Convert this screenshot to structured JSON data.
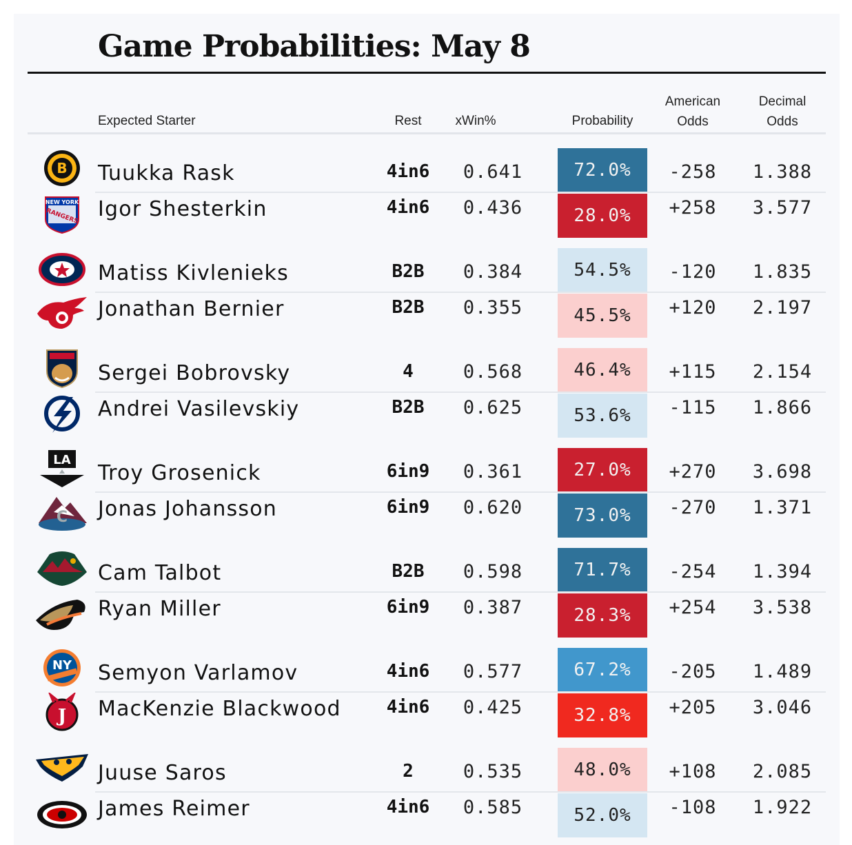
{
  "title": "Game Probabilities: May 8",
  "headers": {
    "starter": "Expected Starter",
    "rest": "Rest",
    "xwin": "xWin%",
    "probability": "Probability",
    "american_1": "American",
    "american_2": "Odds",
    "decimal_1": "Decimal",
    "decimal_2": "Odds"
  },
  "colors": {
    "strong_blue": "#2f7299",
    "mid_blue": "#4197cc",
    "light_blue": "#d4e6f2",
    "strong_red": "#c9202f",
    "bright_red": "#f0291f",
    "light_red": "#fbcfce"
  },
  "rows": [
    {
      "team_icon": "bruins-logo-icon",
      "starter": "Tuukka Rask",
      "rest": "4in6",
      "xwin": "0.641",
      "probability": "72.0%",
      "prob_color": "#2f7299",
      "american": "-258",
      "decimal": "1.388"
    },
    {
      "team_icon": "rangers-logo-icon",
      "starter": "Igor Shesterkin",
      "rest": "4in6",
      "xwin": "0.436",
      "probability": "28.0%",
      "prob_color": "#c9202f",
      "american": "+258",
      "decimal": "3.577"
    },
    {
      "team_icon": "blue-jackets-logo-icon",
      "starter": "Matiss Kivlenieks",
      "rest": "B2B",
      "xwin": "0.384",
      "probability": "54.5%",
      "prob_color": "#d4e6f2",
      "american": "-120",
      "decimal": "1.835"
    },
    {
      "team_icon": "red-wings-logo-icon",
      "starter": "Jonathan Bernier",
      "rest": "B2B",
      "xwin": "0.355",
      "probability": "45.5%",
      "prob_color": "#fbcfce",
      "american": "+120",
      "decimal": "2.197"
    },
    {
      "team_icon": "panthers-logo-icon",
      "starter": "Sergei Bobrovsky",
      "rest": "4",
      "xwin": "0.568",
      "probability": "46.4%",
      "prob_color": "#fbcfce",
      "american": "+115",
      "decimal": "2.154"
    },
    {
      "team_icon": "lightning-logo-icon",
      "starter": "Andrei Vasilevskiy",
      "rest": "B2B",
      "xwin": "0.625",
      "probability": "53.6%",
      "prob_color": "#d4e6f2",
      "american": "-115",
      "decimal": "1.866"
    },
    {
      "team_icon": "kings-logo-icon",
      "starter": "Troy Grosenick",
      "rest": "6in9",
      "xwin": "0.361",
      "probability": "27.0%",
      "prob_color": "#c9202f",
      "american": "+270",
      "decimal": "3.698"
    },
    {
      "team_icon": "avalanche-logo-icon",
      "starter": "Jonas Johansson",
      "rest": "6in9",
      "xwin": "0.620",
      "probability": "73.0%",
      "prob_color": "#2f7299",
      "american": "-270",
      "decimal": "1.371"
    },
    {
      "team_icon": "wild-logo-icon",
      "starter": "Cam Talbot",
      "rest": "B2B",
      "xwin": "0.598",
      "probability": "71.7%",
      "prob_color": "#2f7299",
      "american": "-254",
      "decimal": "1.394"
    },
    {
      "team_icon": "ducks-logo-icon",
      "starter": "Ryan Miller",
      "rest": "6in9",
      "xwin": "0.387",
      "probability": "28.3%",
      "prob_color": "#c9202f",
      "american": "+254",
      "decimal": "3.538"
    },
    {
      "team_icon": "islanders-logo-icon",
      "starter": "Semyon Varlamov",
      "rest": "4in6",
      "xwin": "0.577",
      "probability": "67.2%",
      "prob_color": "#4197cc",
      "american": "-205",
      "decimal": "1.489"
    },
    {
      "team_icon": "devils-logo-icon",
      "starter": "MacKenzie Blackwood",
      "rest": "4in6",
      "xwin": "0.425",
      "probability": "32.8%",
      "prob_color": "#f0291f",
      "american": "+205",
      "decimal": "3.046"
    },
    {
      "team_icon": "predators-logo-icon",
      "starter": "Juuse Saros",
      "rest": "2",
      "xwin": "0.535",
      "probability": "48.0%",
      "prob_color": "#fbcfce",
      "american": "+108",
      "decimal": "2.085"
    },
    {
      "team_icon": "hurricanes-logo-icon",
      "starter": "James Reimer",
      "rest": "4in6",
      "xwin": "0.585",
      "probability": "52.0%",
      "prob_color": "#d4e6f2",
      "american": "-108",
      "decimal": "1.922"
    }
  ]
}
